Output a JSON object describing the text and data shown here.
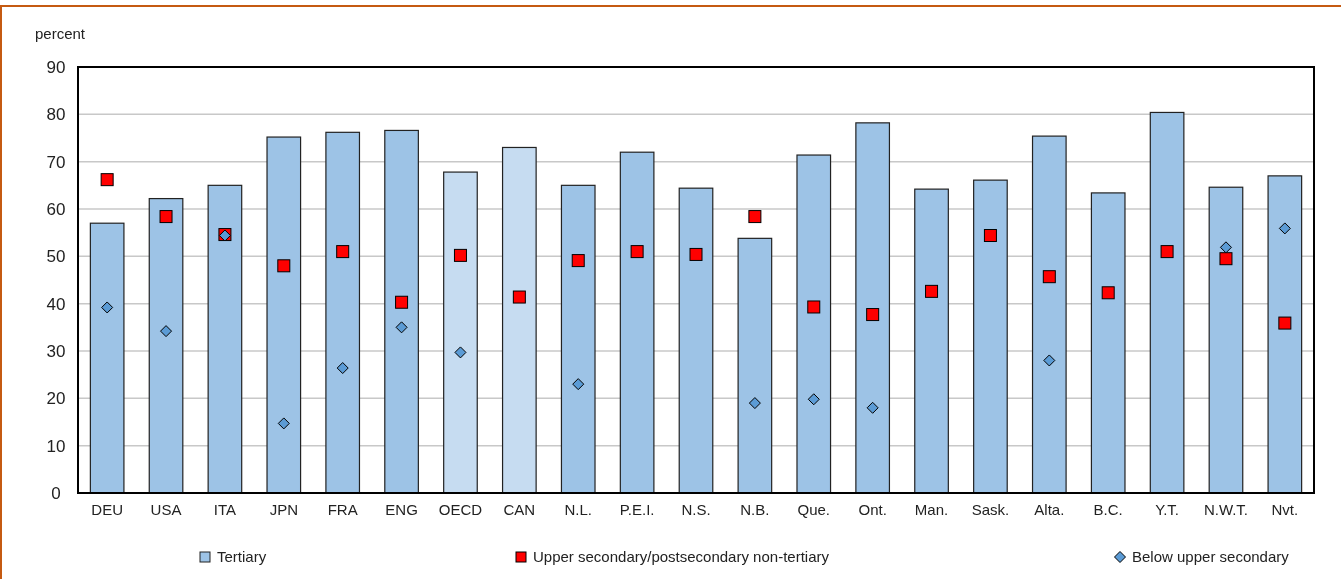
{
  "chart_data": {
    "type": "bar",
    "ylabel": "percent",
    "categories": [
      "DEU",
      "USA",
      "ITA",
      "JPN",
      "FRA",
      "ENG",
      "OECD",
      "CAN",
      "N.L.",
      "P.E.I.",
      "N.S.",
      "N.B.",
      "Que.",
      "Ont.",
      "Man.",
      "Sask.",
      "Alta.",
      "B.C.",
      "Y.T.",
      "N.W.T.",
      "Nvt."
    ],
    "series": [
      {
        "name": "Tertiary",
        "color": "#9dc3e6",
        "colors": [
          "#9dc3e6",
          "#9dc3e6",
          "#9dc3e6",
          "#9dc3e6",
          "#9dc3e6",
          "#9dc3e6",
          "#c6dcf1",
          "#c6dcf1",
          "#9dc3e6",
          "#9dc3e6",
          "#9dc3e6",
          "#9dc3e6",
          "#9dc3e6",
          "#9dc3e6",
          "#9dc3e6",
          "#9dc3e6",
          "#9dc3e6",
          "#9dc3e6",
          "#9dc3e6",
          "#9dc3e6",
          "#9dc3e6"
        ],
        "values": [
          57,
          62.2,
          65,
          75.2,
          76.2,
          76.6,
          67.8,
          73,
          65,
          72,
          64.4,
          53.8,
          71.4,
          78.2,
          64.2,
          66.1,
          75.4,
          63.4,
          80.4,
          64.6,
          67
        ]
      },
      {
        "name": "Upper secondary/postsecondary non-tertiary",
        "type": "scatter",
        "marker": "square",
        "color": "#ff0000",
        "values": [
          66.2,
          58.4,
          54.6,
          48,
          51,
          40.3,
          50.2,
          41.4,
          49.1,
          51,
          50.4,
          58.4,
          39.3,
          37.7,
          42.6,
          54.4,
          45.7,
          42.3,
          51,
          49.5,
          35.9
        ]
      },
      {
        "name": "Below upper secondary",
        "type": "scatter",
        "marker": "diamond",
        "color": "#5b9bd5",
        "values": [
          39.2,
          34.2,
          54.4,
          14.7,
          26.4,
          35,
          29.7,
          null,
          23,
          null,
          null,
          19,
          19.8,
          18,
          null,
          null,
          28,
          null,
          null,
          51.9,
          55.9
        ]
      }
    ],
    "ylim": [
      0,
      90
    ],
    "yticks": [
      0,
      10,
      20,
      30,
      40,
      50,
      60,
      70,
      80,
      90
    ],
    "grid": "y",
    "legend": "bottom"
  }
}
